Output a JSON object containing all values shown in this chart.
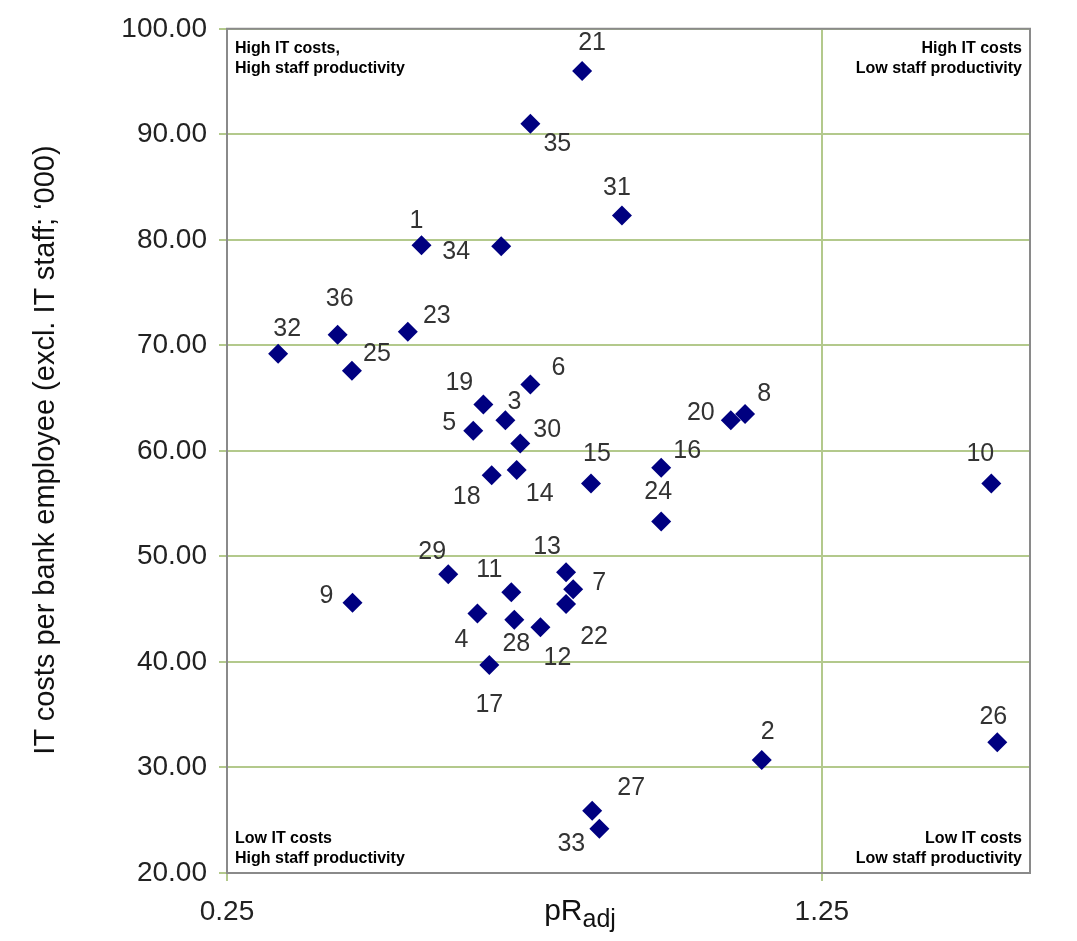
{
  "chart_data": {
    "type": "scatter",
    "xlabel": "pR$_{adj}$",
    "ylabel": "IT costs per bank employee (excl. IT staff; ‘000)",
    "xlim": [
      0.25,
      1.6
    ],
    "xticks": [
      0.25,
      1.25
    ],
    "ylim": [
      20,
      100
    ],
    "yticks": [
      {
        "value": 20,
        "label": "20.00"
      },
      {
        "value": 30,
        "label": "30.00"
      },
      {
        "value": 40,
        "label": "40.00"
      },
      {
        "value": 50,
        "label": "50.00"
      },
      {
        "value": 60,
        "label": "60.00"
      },
      {
        "value": 70,
        "label": "70.00"
      },
      {
        "value": 80,
        "label": "80.00"
      },
      {
        "value": 90,
        "label": "90.00"
      },
      {
        "value": 100,
        "label": "100.00"
      }
    ],
    "grid": true,
    "marker": "diamond",
    "series": [
      {
        "color": "#000080",
        "x": [
          0.577,
          1.149,
          0.718,
          0.671,
          0.664,
          0.76,
          0.832,
          1.121,
          0.461,
          1.535,
          0.728,
          0.777,
          0.82,
          0.737,
          0.862,
          0.98,
          0.691,
          0.695,
          0.681,
          1.097,
          0.847,
          0.82,
          0.554,
          0.98,
          0.46,
          1.545,
          0.864,
          0.733,
          0.622,
          0.743,
          0.914,
          0.336,
          0.876,
          0.711,
          0.76,
          0.436
        ],
        "values": [
          79.5,
          30.7,
          62.9,
          44.6,
          61.9,
          66.3,
          46.9,
          63.5,
          45.6,
          56.9,
          46.6,
          43.3,
          48.5,
          58.2,
          56.9,
          58.4,
          39.7,
          57.7,
          64.4,
          62.9,
          96.0,
          45.5,
          71.3,
          53.3,
          67.6,
          32.4,
          25.9,
          44.0,
          48.3,
          60.7,
          82.3,
          69.2,
          24.2,
          79.4,
          91.0,
          71.0
        ]
      }
    ],
    "annotations": [
      "High IT costs,\nHigh staff productivity",
      "High IT costs\nLow staff productivity",
      "Low IT costs\nHigh staff productivity",
      "Low IT costs\nLow staff productivity",
      {
        "text": "1",
        "x": 0.577,
        "y": 79.5
      },
      {
        "text": "2",
        "x": 1.149,
        "y": 30.7
      },
      {
        "text": "3",
        "x": 0.718,
        "y": 62.9
      },
      {
        "text": "4",
        "x": 0.671,
        "y": 44.6
      },
      {
        "text": "5",
        "x": 0.664,
        "y": 61.9
      },
      {
        "text": "6",
        "x": 0.76,
        "y": 66.3
      },
      {
        "text": "7",
        "x": 0.832,
        "y": 46.9
      },
      {
        "text": "8",
        "x": 1.121,
        "y": 63.5
      },
      {
        "text": "9",
        "x": 0.461,
        "y": 45.6
      },
      {
        "text": "10",
        "x": 1.535,
        "y": 56.9
      },
      {
        "text": "11",
        "x": 0.728,
        "y": 46.6
      },
      {
        "text": "12",
        "x": 0.777,
        "y": 43.3
      },
      {
        "text": "13",
        "x": 0.82,
        "y": 48.5
      },
      {
        "text": "14",
        "x": 0.737,
        "y": 58.2
      },
      {
        "text": "15",
        "x": 0.862,
        "y": 56.9
      },
      {
        "text": "16",
        "x": 0.98,
        "y": 58.4
      },
      {
        "text": "17",
        "x": 0.691,
        "y": 39.7
      },
      {
        "text": "18",
        "x": 0.695,
        "y": 57.7
      },
      {
        "text": "19",
        "x": 0.681,
        "y": 64.4
      },
      {
        "text": "20",
        "x": 1.097,
        "y": 62.9
      },
      {
        "text": "21",
        "x": 0.847,
        "y": 96.0
      },
      {
        "text": "22",
        "x": 0.82,
        "y": 45.5
      },
      {
        "text": "23",
        "x": 0.554,
        "y": 71.3
      },
      {
        "text": "24",
        "x": 0.98,
        "y": 53.3
      },
      {
        "text": "25",
        "x": 0.46,
        "y": 67.6
      },
      {
        "text": "26",
        "x": 1.545,
        "y": 32.4
      },
      {
        "text": "27",
        "x": 0.864,
        "y": 25.9
      },
      {
        "text": "28",
        "x": 0.733,
        "y": 44.0
      },
      {
        "text": "29",
        "x": 0.622,
        "y": 48.3
      },
      {
        "text": "30",
        "x": 0.743,
        "y": 60.7
      },
      {
        "text": "31",
        "x": 0.914,
        "y": 82.3
      },
      {
        "text": "32",
        "x": 0.336,
        "y": 69.2
      },
      {
        "text": "33",
        "x": 0.876,
        "y": 24.2
      },
      {
        "text": "34",
        "x": 0.711,
        "y": 79.4
      },
      {
        "text": "35",
        "x": 0.76,
        "y": 91.0
      },
      {
        "text": "36",
        "x": 0.436,
        "y": 71.0
      }
    ]
  }
}
